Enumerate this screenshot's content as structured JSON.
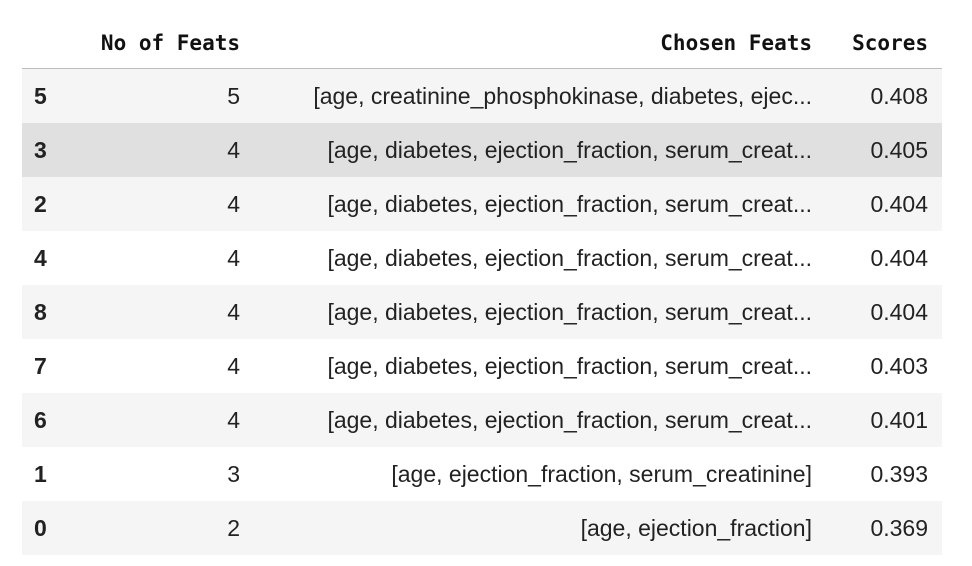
{
  "table": {
    "headers": {
      "index": "",
      "num_feats": "No of Feats",
      "chosen_feats": "Chosen Feats",
      "scores": "Scores"
    },
    "rows": [
      {
        "index": "5",
        "num_feats": "5",
        "chosen_feats": "[age, creatinine_phosphokinase, diabetes, ejec...",
        "score": "0.408"
      },
      {
        "index": "3",
        "num_feats": "4",
        "chosen_feats": "[age, diabetes, ejection_fraction, serum_creat...",
        "score": "0.405"
      },
      {
        "index": "2",
        "num_feats": "4",
        "chosen_feats": "[age, diabetes, ejection_fraction, serum_creat...",
        "score": "0.404"
      },
      {
        "index": "4",
        "num_feats": "4",
        "chosen_feats": "[age, diabetes, ejection_fraction, serum_creat...",
        "score": "0.404"
      },
      {
        "index": "8",
        "num_feats": "4",
        "chosen_feats": "[age, diabetes, ejection_fraction, serum_creat...",
        "score": "0.404"
      },
      {
        "index": "7",
        "num_feats": "4",
        "chosen_feats": "[age, diabetes, ejection_fraction, serum_creat...",
        "score": "0.403"
      },
      {
        "index": "6",
        "num_feats": "4",
        "chosen_feats": "[age, diabetes, ejection_fraction, serum_creat...",
        "score": "0.401"
      },
      {
        "index": "1",
        "num_feats": "3",
        "chosen_feats": "[age, ejection_fraction, serum_creatinine]",
        "score": "0.393"
      },
      {
        "index": "0",
        "num_feats": "2",
        "chosen_feats": "[age, ejection_fraction]",
        "score": "0.369"
      }
    ],
    "hovered_row": 1,
    "colors": {
      "stripe": "#f5f5f5",
      "hover": "#e0e0e0",
      "header_rule": "#bdbdbd"
    }
  }
}
